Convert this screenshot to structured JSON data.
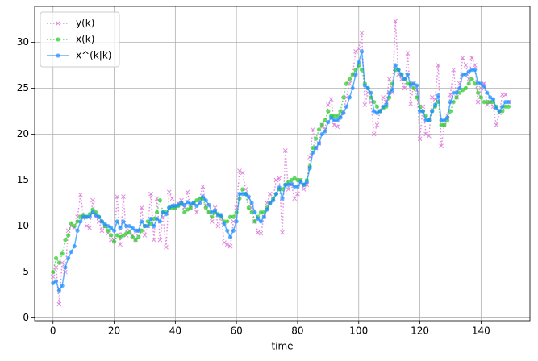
{
  "chart_data": {
    "type": "line",
    "xlabel": "time",
    "grid": true,
    "legend": "upper left",
    "xlim": [
      -6,
      156
    ],
    "ylim": [
      -0.3,
      33.9
    ],
    "xticks": [
      0,
      20,
      40,
      60,
      80,
      100,
      120,
      140
    ],
    "yticks": [
      0,
      5,
      10,
      15,
      20,
      25,
      30
    ],
    "x": [
      0,
      1,
      2,
      3,
      4,
      5,
      6,
      7,
      8,
      9,
      10,
      11,
      12,
      13,
      14,
      15,
      16,
      17,
      18,
      19,
      20,
      21,
      22,
      23,
      24,
      25,
      26,
      27,
      28,
      29,
      30,
      31,
      32,
      33,
      34,
      35,
      36,
      37,
      38,
      39,
      40,
      41,
      42,
      43,
      44,
      45,
      46,
      47,
      48,
      49,
      50,
      51,
      52,
      53,
      54,
      55,
      56,
      57,
      58,
      59,
      60,
      61,
      62,
      63,
      64,
      65,
      66,
      67,
      68,
      69,
      70,
      71,
      72,
      73,
      74,
      75,
      76,
      77,
      78,
      79,
      80,
      81,
      82,
      83,
      84,
      85,
      86,
      87,
      88,
      89,
      90,
      91,
      92,
      93,
      94,
      95,
      96,
      97,
      98,
      99,
      100,
      101,
      102,
      103,
      104,
      105,
      106,
      107,
      108,
      109,
      110,
      111,
      112,
      113,
      114,
      115,
      116,
      117,
      118,
      119,
      120,
      121,
      122,
      123,
      124,
      125,
      126,
      127,
      128,
      129,
      130,
      131,
      132,
      133,
      134,
      135,
      136,
      137,
      138,
      139,
      140,
      141,
      142,
      143,
      144,
      145,
      146,
      147,
      148,
      149
    ],
    "series": [
      {
        "name": "y(k)",
        "color": "#da70d6",
        "linestyle": "dotted",
        "marker": "x",
        "opacity": 0.8,
        "values": [
          4.5,
          5.5,
          1.5,
          6,
          5,
          9.5,
          10,
          9.8,
          11,
          13.4,
          11,
          10,
          9.8,
          12.8,
          11,
          10.5,
          9.5,
          10,
          9.2,
          8.5,
          8.5,
          13.2,
          8,
          13.2,
          9,
          9.5,
          9,
          8.5,
          9.5,
          12,
          9,
          10,
          13.5,
          8.5,
          13,
          8.5,
          11,
          7.7,
          13.7,
          13,
          12,
          12.5,
          12.8,
          12,
          13.7,
          12,
          12.5,
          11.5,
          13,
          14.3,
          12.2,
          11.5,
          10.5,
          12,
          10,
          11,
          8.2,
          8,
          7.8,
          10.5,
          12,
          16,
          15.8,
          14,
          13,
          12,
          10.5,
          9.3,
          9.2,
          11,
          12.5,
          13.5,
          13,
          15,
          15.2,
          9.3,
          18.2,
          14,
          14.5,
          13,
          13.5,
          15,
          14,
          14.5,
          17.5,
          20.5,
          18.5,
          19,
          21,
          20.5,
          23.2,
          23.8,
          21,
          20.8,
          22,
          22.5,
          24,
          25.5,
          26.5,
          29,
          29.3,
          31,
          23.2,
          24.5,
          23.5,
          20,
          21,
          22.5,
          24,
          23.5,
          26,
          24.5,
          32.3,
          26.5,
          26,
          25,
          28.8,
          23.3,
          25.5,
          24.8,
          19.5,
          23,
          20,
          19.8,
          24,
          23.8,
          27.5,
          18.7,
          21,
          22,
          24.3,
          27,
          24,
          25.5,
          28.3,
          27.5,
          26,
          28.3,
          27.5,
          23.5,
          25,
          25.5,
          23.2,
          23.5,
          23,
          21,
          22.3,
          24.3,
          24.3,
          23.5
        ]
      },
      {
        "name": "x(k)",
        "color": "#32cd32",
        "linestyle": "dotted",
        "marker": "o",
        "opacity": 0.75,
        "values": [
          5,
          6.5,
          6,
          7,
          8.5,
          9,
          10.3,
          10,
          10.5,
          11,
          11.2,
          11,
          11.3,
          11.8,
          11.5,
          11,
          10.5,
          10,
          9.5,
          9,
          8.3,
          9,
          8.8,
          9,
          9.2,
          9.3,
          8.8,
          8.5,
          8.8,
          9.5,
          10,
          10.5,
          10.2,
          10.8,
          11.5,
          12.8,
          11.5,
          11.5,
          12,
          12,
          12,
          12.2,
          12.5,
          11.5,
          11.8,
          12,
          12.5,
          12.8,
          13,
          13,
          12,
          11.5,
          11,
          11.5,
          11.3,
          11,
          10.5,
          10.5,
          11,
          11,
          11.5,
          13,
          14,
          13.5,
          12,
          11.5,
          10.5,
          11,
          11.5,
          11.5,
          12,
          12.5,
          13,
          13.5,
          14,
          14,
          14.5,
          14.8,
          15,
          15.2,
          15,
          15,
          14.5,
          15,
          16.5,
          18.5,
          19.5,
          20.5,
          21,
          21.5,
          22.5,
          22,
          22,
          22,
          22.5,
          24,
          25.5,
          26,
          26.5,
          27,
          27.5,
          27,
          25.5,
          25,
          24,
          23.5,
          23,
          22.5,
          22.8,
          23,
          24,
          25.5,
          27,
          27,
          26.5,
          26,
          25.5,
          25.5,
          25,
          24,
          23,
          22.5,
          22,
          21.5,
          22.5,
          23,
          23.5,
          21,
          21,
          21.5,
          22.5,
          23.5,
          24,
          24.5,
          24.8,
          25,
          25.5,
          26,
          25.5,
          24.5,
          24,
          23.5,
          23.5,
          23.5,
          23.5,
          23,
          22.5,
          22.5,
          23,
          23
        ]
      },
      {
        "name": "x^(k|k)",
        "color": "#1e90ff",
        "linestyle": "solid",
        "marker": "o",
        "opacity": 0.7,
        "values": [
          3.8,
          4,
          3,
          3.5,
          5.5,
          6.5,
          7.2,
          7.8,
          9.5,
          10.5,
          11,
          11,
          11,
          11.5,
          11.2,
          11,
          10.5,
          10.2,
          10,
          9.8,
          9.5,
          10.5,
          9.8,
          10.5,
          10,
          10,
          9.8,
          9.5,
          9.5,
          10.5,
          10,
          10,
          10.8,
          10,
          10.8,
          10.5,
          11.5,
          11.3,
          12,
          12.2,
          12.2,
          12.3,
          12.5,
          12.3,
          12.6,
          12.4,
          12.5,
          12.2,
          12.5,
          13.2,
          12.8,
          12.3,
          11.5,
          11.7,
          11.2,
          11.2,
          10.2,
          9.5,
          8.8,
          9.5,
          10.5,
          13.5,
          13.5,
          13.5,
          13.2,
          12.5,
          11.5,
          10.8,
          10.5,
          11,
          11.8,
          12.5,
          12.8,
          13.5,
          14.2,
          13,
          14.5,
          14.5,
          14.6,
          14.3,
          14.3,
          14.8,
          14.5,
          14.8,
          16.3,
          18,
          18.5,
          19,
          20,
          20.3,
          21.3,
          21.8,
          21.5,
          21.5,
          21.8,
          22.3,
          23,
          24,
          25,
          26.5,
          27.8,
          29,
          25.3,
          25,
          24.5,
          22.5,
          22.3,
          22.5,
          23,
          23.2,
          24.5,
          24.8,
          27.5,
          27,
          26.5,
          26,
          26.5,
          25.3,
          25.5,
          25.3,
          22.5,
          22.5,
          21.5,
          21.5,
          22.5,
          23.2,
          24.2,
          21.5,
          21.5,
          21.8,
          23.5,
          24.5,
          24.5,
          25,
          26.5,
          26.5,
          26.8,
          27,
          27,
          25.6,
          25.5,
          25.2,
          24.5,
          24,
          23.8,
          22.8,
          22.5,
          23,
          23.5,
          23.5
        ]
      }
    ]
  }
}
